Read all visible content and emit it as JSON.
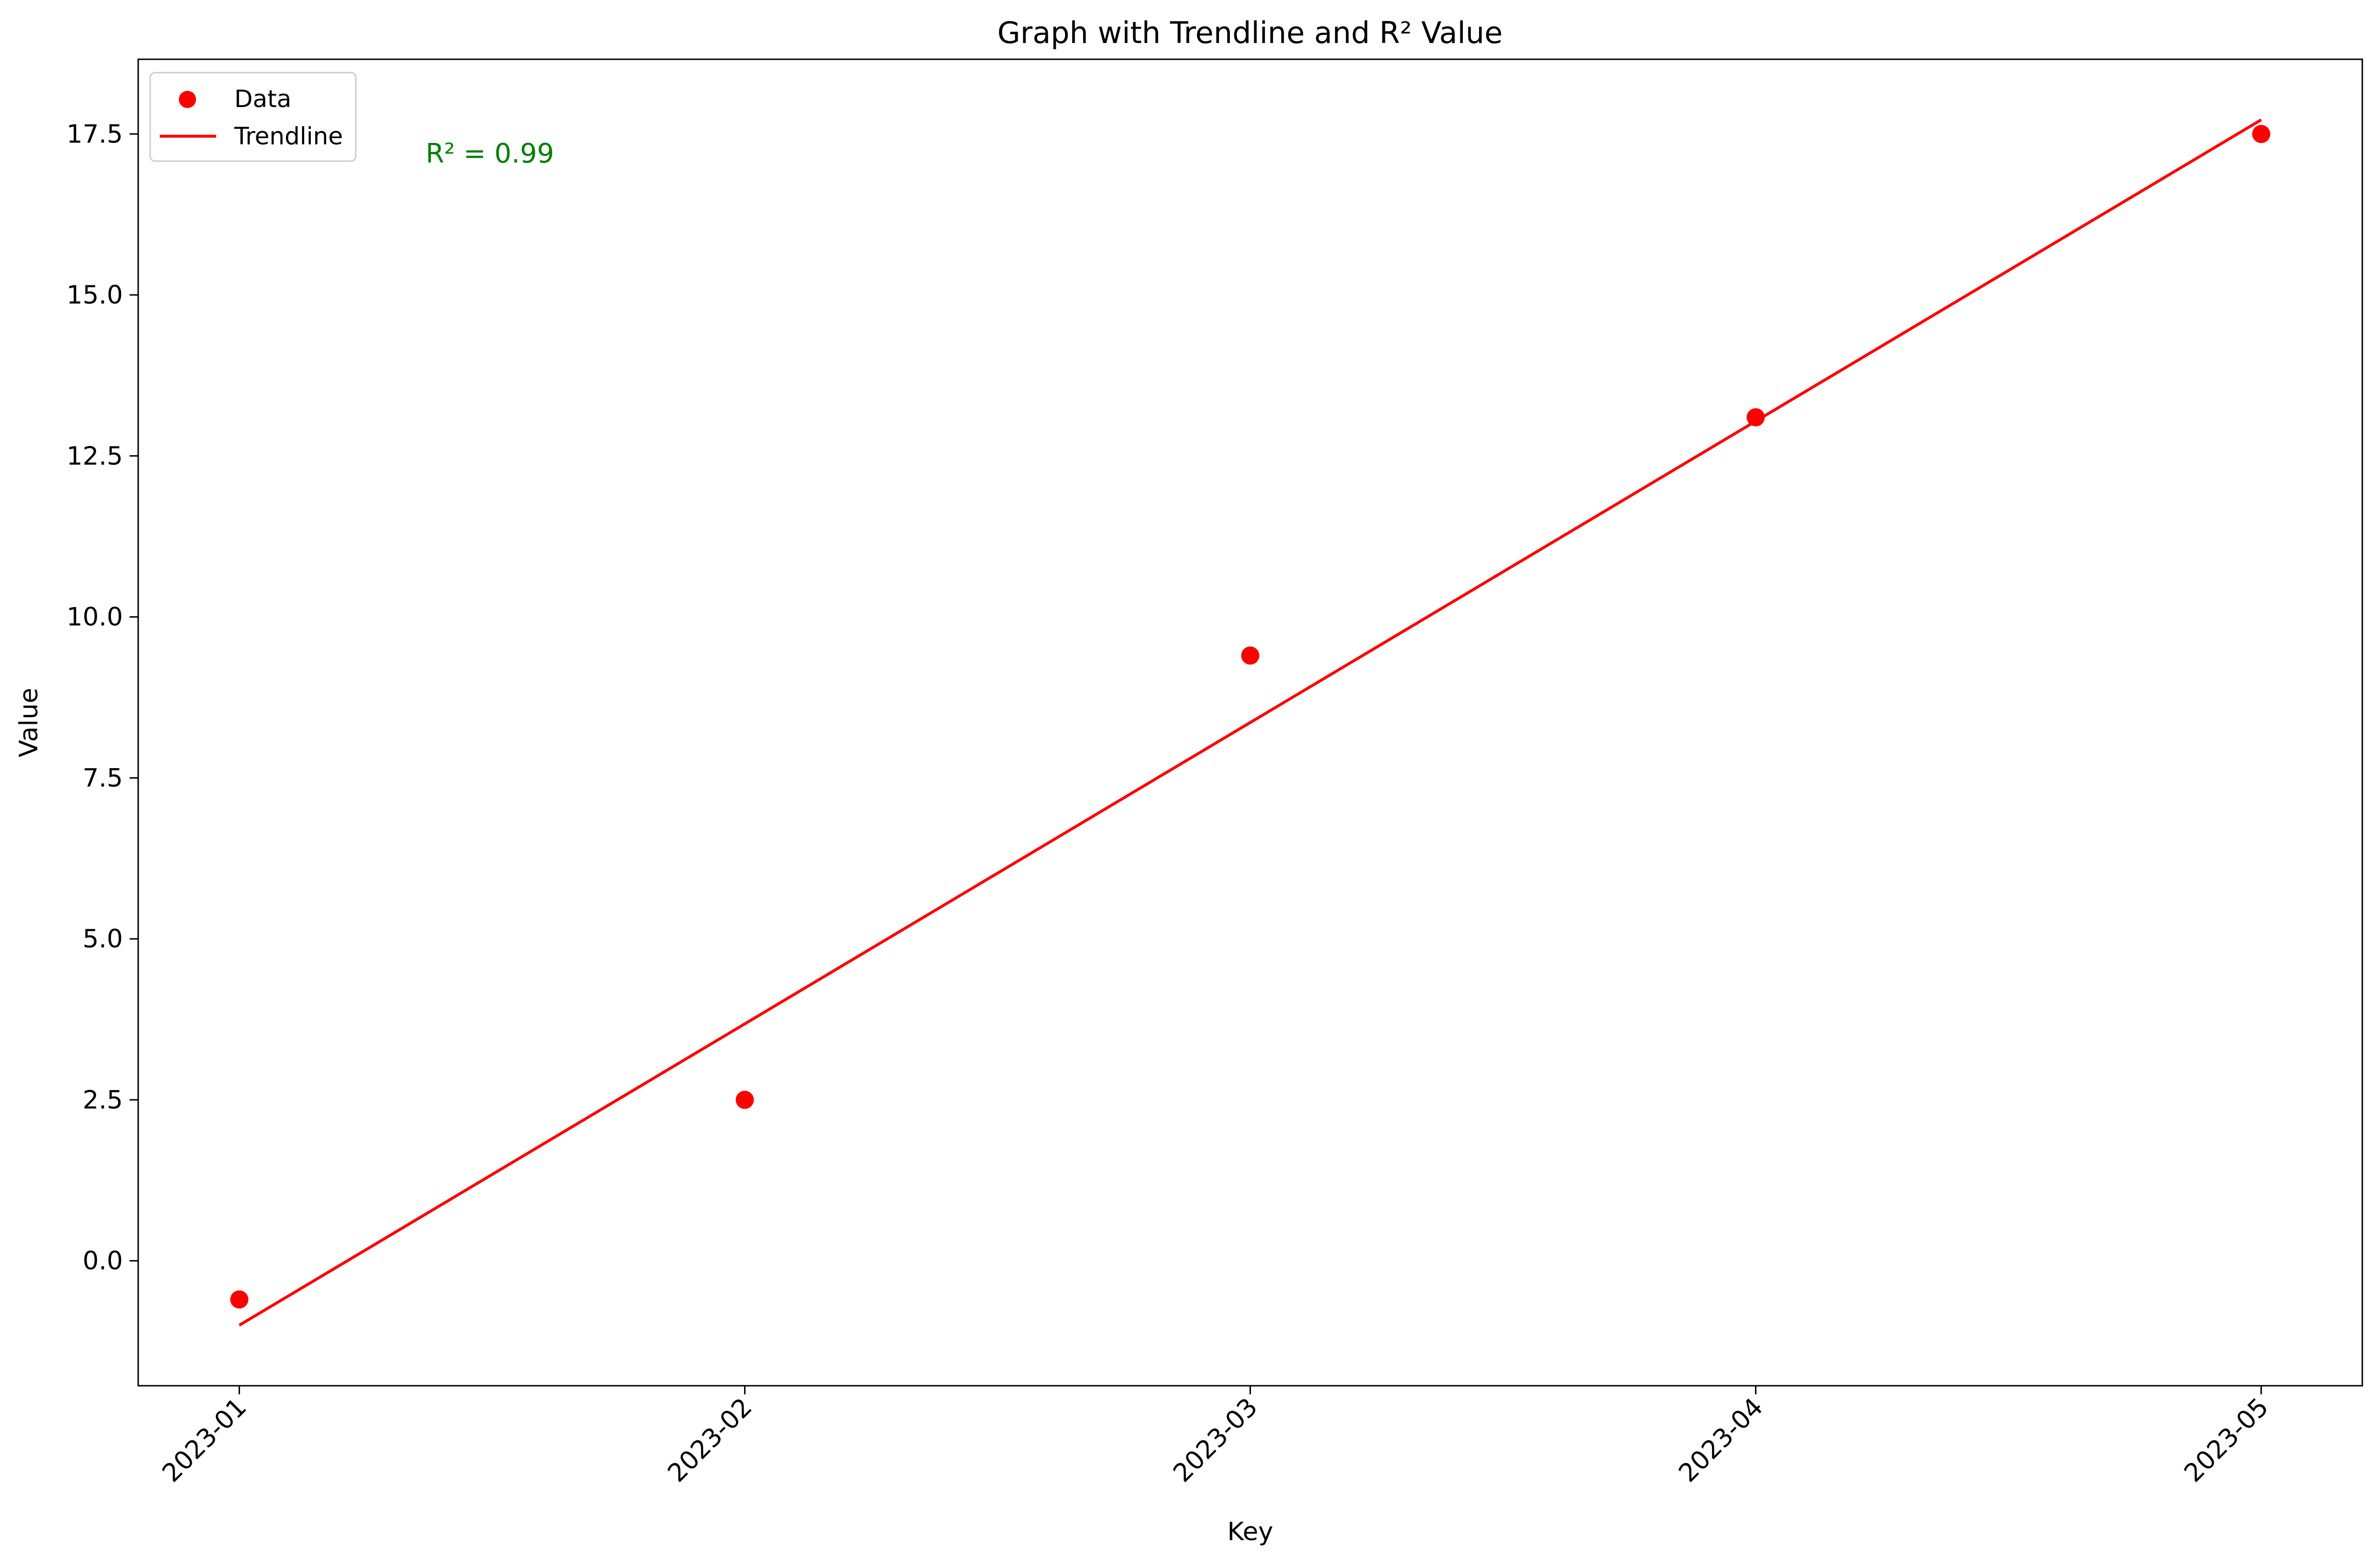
{
  "chart_data": {
    "type": "scatter",
    "title": "Graph with Trendline and R² Value",
    "xlabel": "Key",
    "ylabel": "Value",
    "x": [
      "2023-01",
      "2023-02",
      "2023-03",
      "2023-04",
      "2023-05"
    ],
    "series": [
      {
        "name": "Data",
        "kind": "scatter",
        "color": "#ff0000",
        "values": [
          -0.6,
          2.5,
          9.4,
          13.1,
          17.5
        ]
      },
      {
        "name": "Trendline",
        "kind": "line",
        "color": "#ff0000",
        "values": [
          -1.0,
          3.68,
          8.36,
          13.04,
          17.72
        ]
      }
    ],
    "ylim": [
      -1.94,
      18.66
    ],
    "yticks": [
      0.0,
      2.5,
      5.0,
      7.5,
      10.0,
      12.5,
      15.0,
      17.5
    ],
    "ytick_labels": [
      "0.0",
      "2.5",
      "5.0",
      "7.5",
      "10.0",
      "12.5",
      "15.0",
      "17.5"
    ],
    "xtick_rotation": 45,
    "grid": false,
    "legend_position": "top-left",
    "annotations": [
      {
        "text": "R² = 0.99",
        "color": "#008000"
      }
    ]
  }
}
